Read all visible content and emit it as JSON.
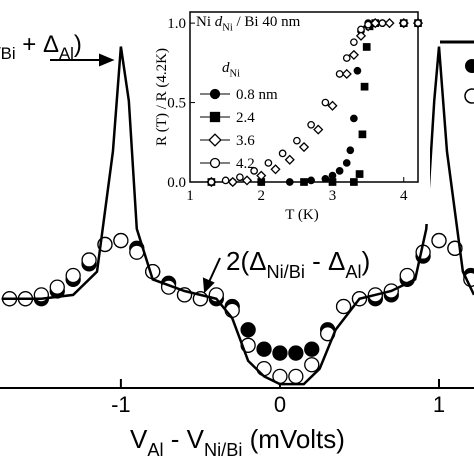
{
  "chart_data": [
    {
      "type": "line",
      "xlim": [
        -1.76,
        1.22
      ],
      "ylim": [
        0,
        1
      ],
      "xticks": [
        -1,
        0,
        1
      ],
      "xlabel": [
        {
          "text": "V"
        },
        {
          "text": "Al",
          "sub": true
        },
        {
          "text": " - V"
        },
        {
          "text": "Ni/Bi",
          "sub": true
        },
        {
          "text": " (mVolts)"
        }
      ],
      "annotations": [
        [
          {
            "text": "/Bi",
            "sub": true
          },
          {
            "text": " + Δ"
          },
          {
            "text": "Al",
            "sub": true
          },
          {
            "text": ")"
          }
        ],
        [
          {
            "text": "2(Δ"
          },
          {
            "text": "Ni/Bi",
            "sub": true
          },
          {
            "text": " - Δ"
          },
          {
            "text": "Al",
            "sub": true
          },
          {
            "text": ")"
          }
        ]
      ],
      "series": [
        {
          "marker": "circle",
          "color": "#000000",
          "fill": "#000000",
          "x": [
            -1.7,
            -1.6,
            -1.5,
            -1.4,
            -1.3,
            -1.2,
            -1.1,
            -1.0,
            -0.9,
            -0.8,
            -0.7,
            -0.6,
            -0.5,
            -0.4,
            -0.3,
            -0.2,
            -0.1,
            0,
            0.1,
            0.2,
            0.3,
            0.4,
            0.5,
            0.6,
            0.7,
            0.8,
            0.9,
            1.0,
            1.1,
            1.2
          ],
          "values": [
            0.23,
            0.23,
            0.23,
            0.25,
            0.28,
            0.32,
            0.37,
            0.38,
            0.36,
            0.3,
            0.27,
            0.24,
            0.23,
            0.23,
            0.21,
            0.15,
            0.1,
            0.09,
            0.09,
            0.1,
            0.15,
            0.21,
            0.23,
            0.23,
            0.24,
            0.28,
            0.34,
            0.38,
            0.36,
            0.29
          ]
        },
        {
          "marker": "circle",
          "color": "#000000",
          "fill": "#ffffff",
          "x": [
            -1.7,
            -1.6,
            -1.5,
            -1.4,
            -1.3,
            -1.2,
            -1.1,
            -1.0,
            -0.9,
            -0.8,
            -0.7,
            -0.6,
            -0.5,
            -0.4,
            -0.3,
            -0.2,
            -0.1,
            0,
            0.1,
            0.2,
            0.3,
            0.4,
            0.5,
            0.6,
            0.7,
            0.8,
            0.9,
            1.0,
            1.1,
            1.2
          ],
          "values": [
            0.23,
            0.23,
            0.24,
            0.26,
            0.29,
            0.33,
            0.37,
            0.38,
            0.35,
            0.3,
            0.26,
            0.24,
            0.23,
            0.24,
            0.2,
            0.11,
            0.05,
            0.03,
            0.03,
            0.06,
            0.14,
            0.21,
            0.23,
            0.24,
            0.25,
            0.29,
            0.35,
            0.38,
            0.36,
            0.28
          ]
        },
        {
          "marker": "none",
          "color": "#000000",
          "x": [
            -1.75,
            -1.5,
            -1.3,
            -1.15,
            -1.05,
            -1.0,
            -0.95,
            -0.9,
            -0.8,
            -0.6,
            -0.4,
            -0.3,
            -0.2,
            -0.1,
            0,
            0.15,
            0.25,
            0.35,
            0.5,
            0.7,
            0.85,
            0.92,
            0.97,
            1.0,
            1.05,
            1.15,
            1.22
          ],
          "values": [
            0.23,
            0.23,
            0.24,
            0.3,
            0.61,
            0.88,
            0.74,
            0.41,
            0.28,
            0.25,
            0.23,
            0.18,
            0.07,
            0.03,
            0.01,
            0.01,
            0.05,
            0.15,
            0.23,
            0.25,
            0.28,
            0.41,
            0.74,
            0.88,
            0.61,
            0.3,
            0.24
          ]
        }
      ]
    },
    {
      "type": "scatter",
      "xlim": [
        1,
        4.2
      ],
      "ylim": [
        0,
        1.07
      ],
      "xticks": [
        1,
        2,
        3,
        4
      ],
      "yticks": [
        {
          "value": 0,
          "label": "0.0"
        },
        {
          "value": 0.5,
          "label": "0.5"
        },
        {
          "value": 1,
          "label": "1.0"
        }
      ],
      "xlabel": "T (K)",
      "ylabel": "R (T) / R (4.2K)",
      "note": [
        {
          "text": "Ni "
        },
        {
          "text": "d",
          "italic": true
        },
        {
          "text": "Ni",
          "sub": true
        },
        {
          "text": " / Bi 40 nm"
        }
      ],
      "legend_title": [
        {
          "text": "d",
          "italic": true
        },
        {
          "text": "Ni",
          "sub": true
        }
      ],
      "series": [
        {
          "name": "0.8 nm",
          "marker": "circle",
          "color": "#000000",
          "fill": "#000000",
          "x": [
            1.3,
            1.6,
            2.0,
            2.4,
            2.7,
            2.9,
            3.0,
            3.1,
            3.2,
            3.25,
            3.3,
            3.35,
            3.4,
            3.5,
            3.7,
            4.0,
            4.2
          ],
          "values": [
            0,
            0,
            0,
            0,
            0.01,
            0.02,
            0.04,
            0.07,
            0.12,
            0.2,
            0.4,
            0.7,
            0.95,
            1,
            1,
            1,
            1
          ]
        },
        {
          "name": "2.4",
          "marker": "square",
          "color": "#000000",
          "fill": "#000000",
          "x": [
            1.3,
            2.0,
            2.6,
            3.0,
            3.3,
            3.38,
            3.42,
            3.45,
            3.48,
            3.52,
            3.6,
            4.0,
            4.2
          ],
          "values": [
            0,
            0,
            0,
            0,
            0,
            0.05,
            0.3,
            0.6,
            0.85,
            0.98,
            1,
            1,
            1
          ]
        },
        {
          "name": "3.6",
          "marker": "diamond",
          "color": "#000000",
          "fill": "#ffffff",
          "x": [
            1.3,
            1.6,
            1.8,
            2.0,
            2.2,
            2.4,
            2.6,
            2.8,
            3.0,
            3.2,
            3.3,
            3.4,
            3.5,
            3.6,
            3.8,
            4.0,
            4.2
          ],
          "values": [
            0,
            0,
            0.01,
            0.04,
            0.08,
            0.14,
            0.22,
            0.33,
            0.48,
            0.68,
            0.8,
            0.92,
            0.98,
            1,
            1,
            1,
            1
          ]
        },
        {
          "name": "4.2",
          "marker": "circle",
          "color": "#000000",
          "fill": "#ffffff",
          "x": [
            1.3,
            1.5,
            1.7,
            1.9,
            2.1,
            2.3,
            2.5,
            2.7,
            2.9,
            3.1,
            3.2,
            3.3,
            3.4,
            3.5,
            3.7,
            4.0,
            4.2
          ],
          "values": [
            0,
            0.01,
            0.03,
            0.07,
            0.12,
            0.18,
            0.26,
            0.36,
            0.5,
            0.68,
            0.78,
            0.88,
            0.96,
            0.99,
            1,
            1,
            1
          ]
        }
      ]
    }
  ]
}
